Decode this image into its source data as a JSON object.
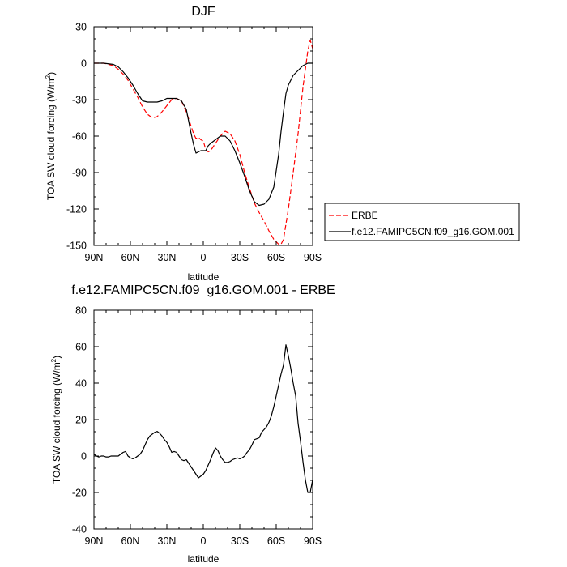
{
  "chart_data": [
    {
      "type": "line",
      "title": "DJF",
      "xlabel": "latitude",
      "ylabel": "TOA SW cloud forcing (W/m",
      "ylabel_sup": "2",
      "ylabel_close": ")",
      "xlim": [
        90,
        -90
      ],
      "ylim": [
        -150,
        30
      ],
      "xticks": [
        90,
        60,
        30,
        0,
        -30,
        -60,
        -90
      ],
      "xtick_labels": [
        "90N",
        "60N",
        "30N",
        "0",
        "30S",
        "60S",
        "90S"
      ],
      "yticks": [
        30,
        0,
        -30,
        -60,
        -90,
        -120,
        -150
      ],
      "ytick_labels": [
        "30",
        "0",
        "-30",
        "-60",
        "-90",
        "-120",
        "-150"
      ],
      "legend_position": "right",
      "series": [
        {
          "name": "ERBE",
          "color": "#ff0000",
          "dash": "dashed",
          "x": [
            90,
            86,
            82,
            78,
            74,
            70,
            66,
            62,
            58,
            54,
            50,
            46,
            42,
            38,
            34,
            30,
            26,
            22,
            18,
            14,
            10,
            8,
            6,
            4,
            2,
            0,
            -2,
            -4,
            -6,
            -10,
            -14,
            -18,
            -22,
            -26,
            -30,
            -34,
            -38,
            -42,
            -46,
            -50,
            -54,
            -58,
            -62,
            -64,
            -66,
            -70,
            -74,
            -78,
            -82,
            -86,
            -88,
            -90
          ],
          "y": [
            0,
            0,
            0,
            -1,
            -2,
            -5,
            -9,
            -14,
            -21,
            -28,
            -36,
            -42,
            -45,
            -44,
            -40,
            -35,
            -30,
            -29,
            -31,
            -40,
            -52,
            -58,
            -62,
            -61,
            -63,
            -64,
            -71,
            -73,
            -72,
            -66,
            -60,
            -56,
            -58,
            -64,
            -75,
            -90,
            -103,
            -115,
            -123,
            -130,
            -138,
            -145,
            -149,
            -149,
            -145,
            -120,
            -90,
            -58,
            -20,
            10,
            19,
            12
          ]
        },
        {
          "name": "f.e12.FAMIPC5CN.f09_g16.GOM.001",
          "color": "#000000",
          "dash": "solid",
          "x": [
            90,
            86,
            82,
            78,
            74,
            70,
            66,
            62,
            58,
            54,
            50,
            46,
            42,
            38,
            34,
            30,
            26,
            22,
            18,
            14,
            10,
            8,
            6,
            4,
            2,
            0,
            -2,
            -4,
            -6,
            -10,
            -14,
            -18,
            -22,
            -26,
            -30,
            -34,
            -38,
            -42,
            -46,
            -50,
            -54,
            -58,
            -62,
            -64,
            -66,
            -68,
            -70,
            -74,
            -78,
            -82,
            -86,
            -90
          ],
          "y": [
            0,
            0,
            0,
            -0.5,
            -1,
            -3,
            -7,
            -12,
            -18,
            -25,
            -31,
            -32,
            -32,
            -32,
            -31,
            -29,
            -29,
            -29,
            -31,
            -38,
            -58,
            -67,
            -74,
            -73,
            -72,
            -72,
            -72,
            -68,
            -66,
            -63,
            -60,
            -60,
            -64,
            -72,
            -82,
            -93,
            -105,
            -114,
            -117,
            -116,
            -112,
            -102,
            -75,
            -56,
            -40,
            -25,
            -18,
            -10,
            -6,
            -2,
            0,
            0
          ]
        }
      ]
    },
    {
      "type": "line",
      "title": "f.e12.FAMIPC5CN.f09_g16.GOM.001 - ERBE",
      "xlabel": "latitude",
      "ylabel": "TOA SW cloud forcing (W/m",
      "ylabel_sup": "2",
      "ylabel_close": ")",
      "xlim": [
        90,
        -90
      ],
      "ylim": [
        -40,
        80
      ],
      "xticks": [
        90,
        60,
        30,
        0,
        -30,
        -60,
        -90
      ],
      "xtick_labels": [
        "90N",
        "60N",
        "30N",
        "0",
        "30S",
        "60S",
        "90S"
      ],
      "yticks": [
        80,
        60,
        40,
        20,
        0,
        -20,
        -40
      ],
      "ytick_labels": [
        "80",
        "60",
        "40",
        "20",
        "0",
        "-20",
        "-40"
      ],
      "series": [
        {
          "color": "#000000",
          "dash": "solid",
          "x": [
            90,
            88,
            86,
            84,
            82,
            80,
            78,
            76,
            74,
            72,
            70,
            68,
            66,
            64,
            62,
            60,
            58,
            56,
            54,
            52,
            50,
            48,
            46,
            44,
            42,
            40,
            38,
            36,
            34,
            32,
            30,
            28,
            26,
            24,
            22,
            20,
            18,
            16,
            14,
            12,
            10,
            8,
            6,
            4,
            2,
            0,
            -2,
            -4,
            -6,
            -8,
            -10,
            -12,
            -14,
            -16,
            -18,
            -20,
            -22,
            -24,
            -26,
            -28,
            -30,
            -32,
            -34,
            -36,
            -38,
            -40,
            -42,
            -44,
            -46,
            -48,
            -50,
            -52,
            -54,
            -56,
            -58,
            -60,
            -62,
            -64,
            -66,
            -68,
            -70,
            -72,
            -74,
            -76,
            -78,
            -80,
            -82,
            -84,
            -86,
            -88,
            -90
          ],
          "y": [
            1,
            0,
            -0.5,
            0,
            0,
            -0.5,
            -0.5,
            0,
            0,
            0,
            0,
            1,
            2,
            2.5,
            0,
            -1,
            -1.5,
            -1,
            0,
            1,
            3,
            6,
            9,
            11,
            12,
            13,
            13.5,
            12.5,
            11,
            9,
            7.5,
            5,
            2,
            2.5,
            2,
            0,
            -2,
            -2.5,
            -2,
            -4,
            -6,
            -8,
            -10,
            -12,
            -11,
            -10,
            -8,
            -5,
            -2,
            1.5,
            4.5,
            3,
            0,
            -2,
            -3.5,
            -3.5,
            -3,
            -2,
            -1.5,
            -1,
            -1.5,
            -1,
            0,
            2,
            3.5,
            6,
            9,
            9.5,
            10,
            13,
            14.5,
            16,
            18.5,
            22,
            27,
            33,
            39,
            45,
            50,
            61,
            55,
            48,
            40,
            33,
            18,
            8,
            -3,
            -13,
            -20,
            -20,
            -13
          ]
        }
      ]
    }
  ]
}
